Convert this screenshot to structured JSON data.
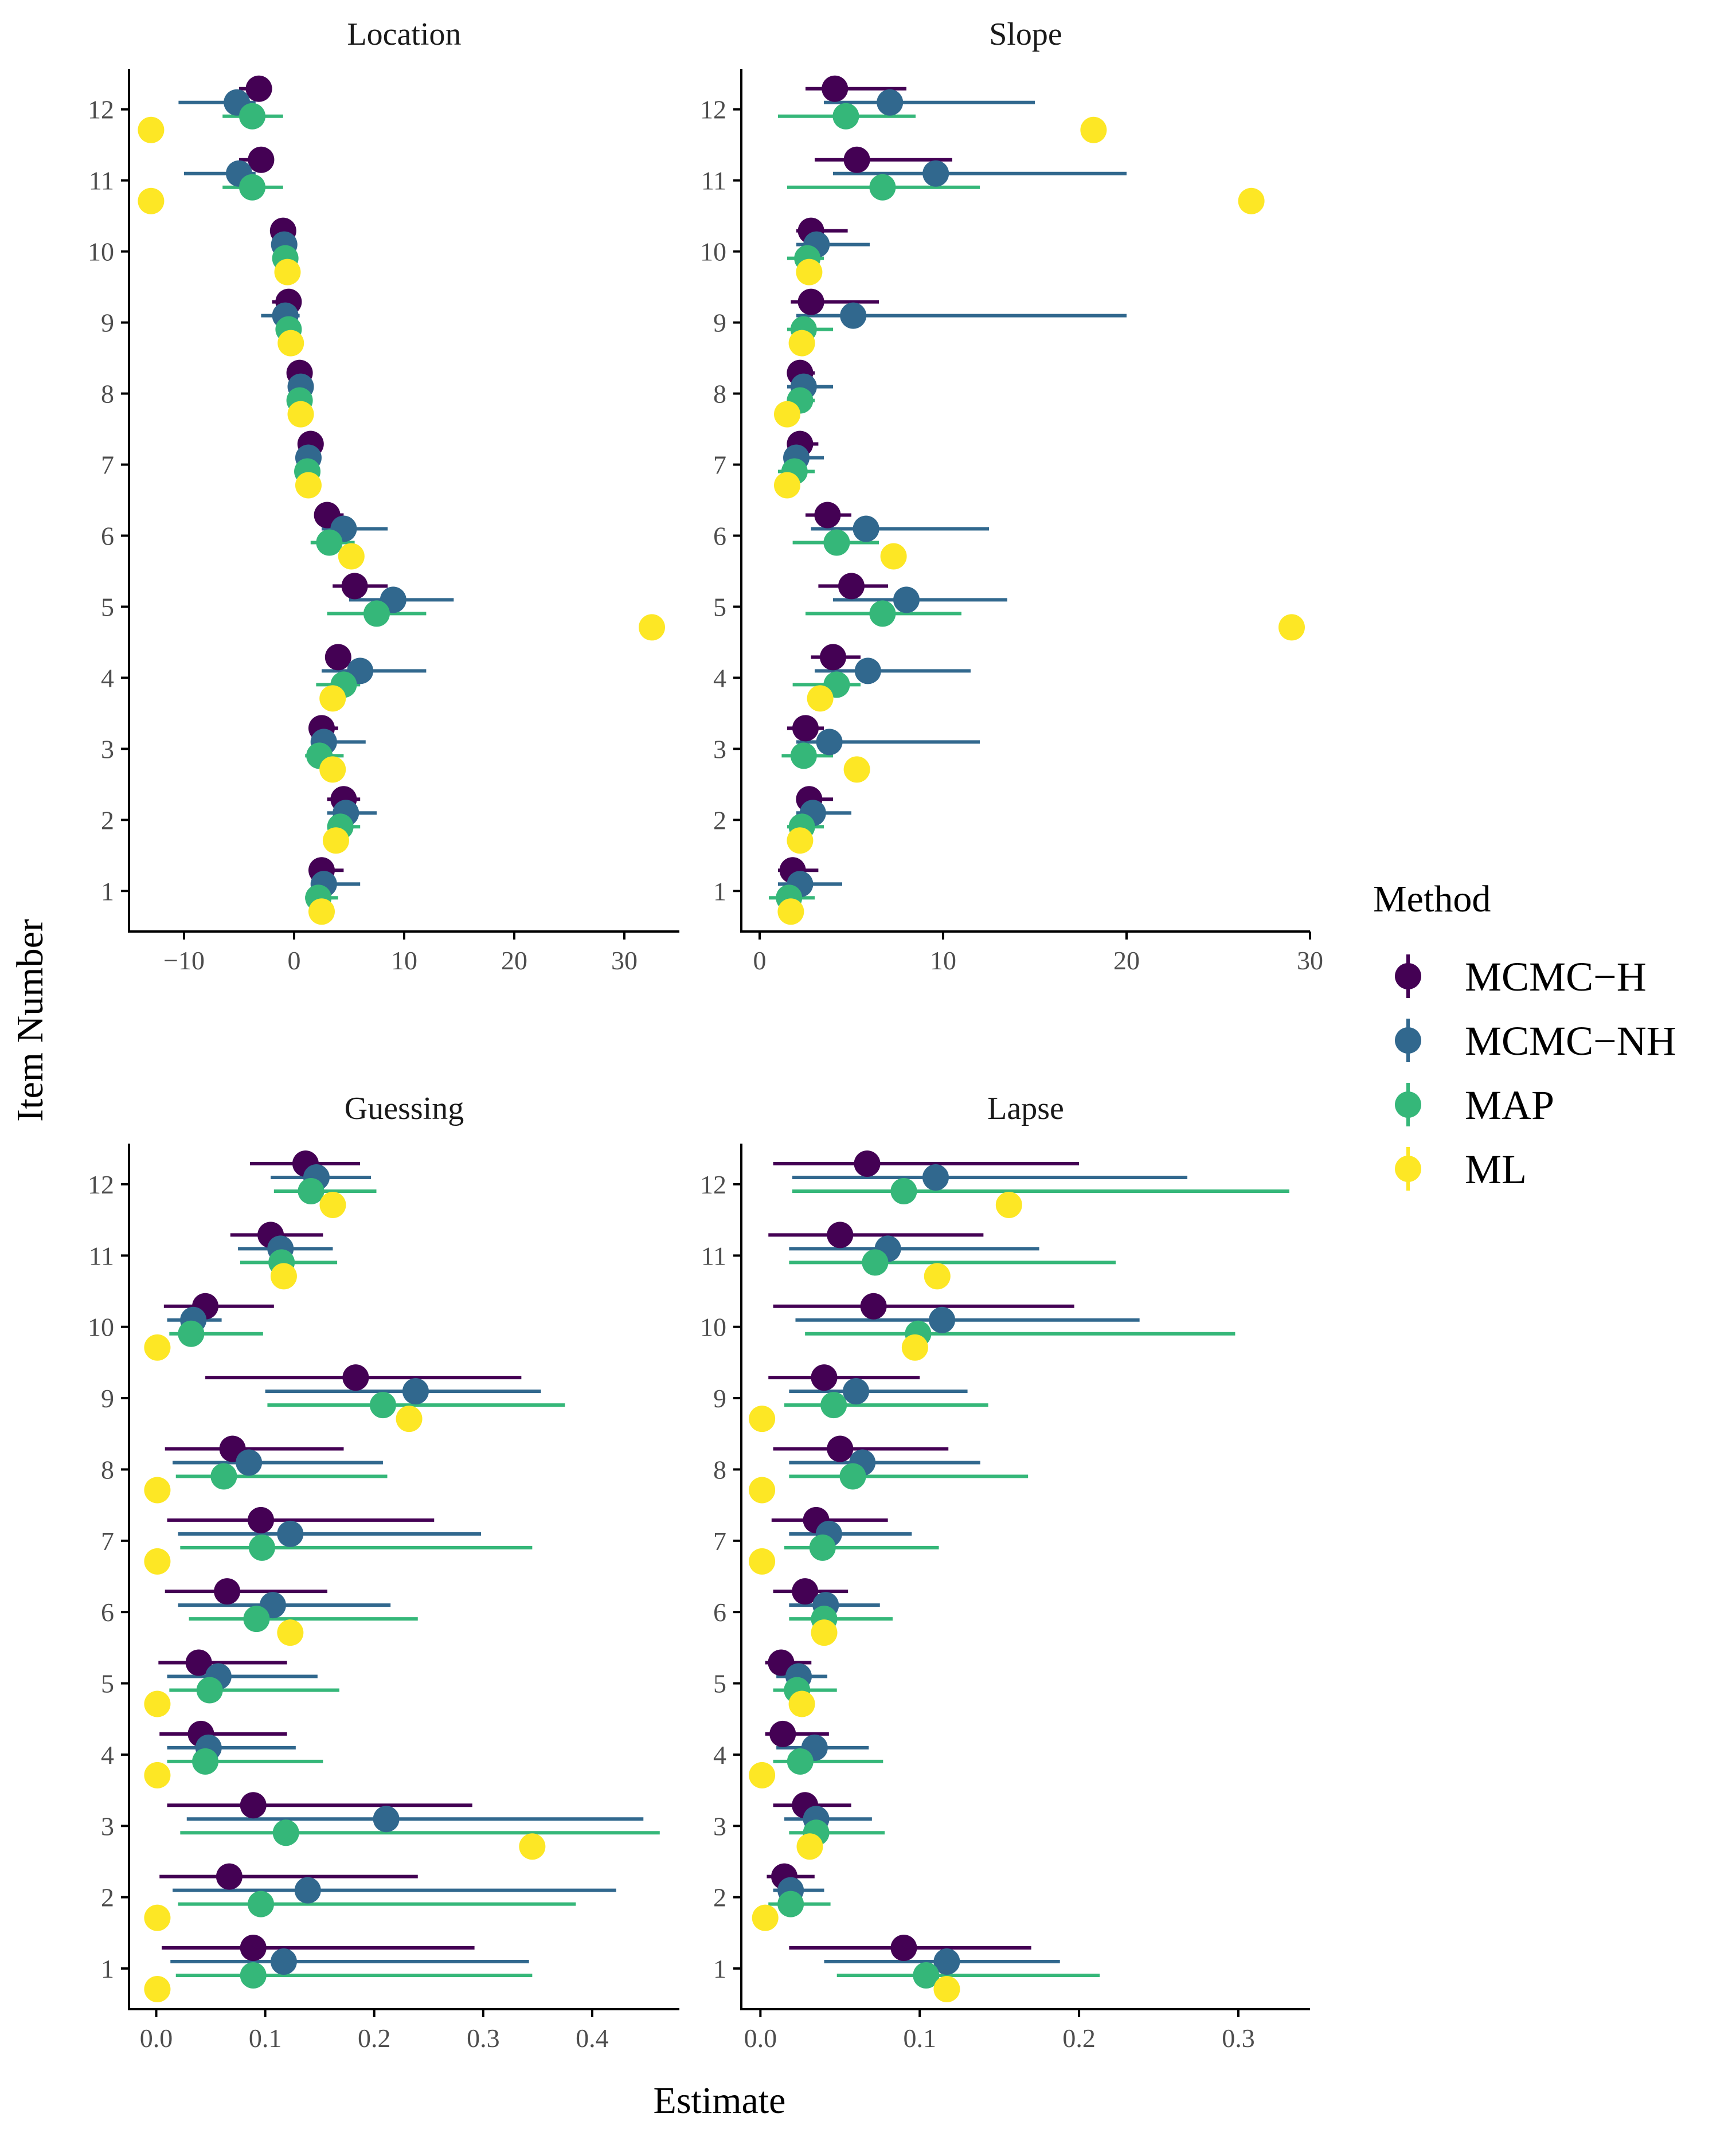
{
  "chart_data": {
    "type": "dot-errorbar",
    "xlabel": "Estimate",
    "ylabel": "Item Number",
    "legend": {
      "title": "Method",
      "position": "right",
      "entries": [
        "MCMC−H",
        "MCMC−NH",
        "MAP",
        "ML"
      ]
    },
    "colors": {
      "MCMC−H": "#440154",
      "MCMC−NH": "#31688e",
      "MAP": "#35b779",
      "ML": "#fde725"
    },
    "items": [
      "1",
      "2",
      "3",
      "4",
      "5",
      "6",
      "7",
      "8",
      "9",
      "10",
      "11",
      "12"
    ],
    "panels": [
      {
        "title": "Location",
        "xlim": [
          -15,
          35
        ],
        "xticks": [
          -10,
          0,
          10,
          20,
          30
        ],
        "xtick_labels": [
          "−10",
          "0",
          "10",
          "20",
          "30"
        ],
        "series": [
          {
            "name": "MCMC−H",
            "values": [
              2.5,
              4.5,
              2.5,
              4.0,
              5.5,
              3.0,
              1.5,
              0.5,
              -0.5,
              -1.0,
              -3.0,
              -3.2
            ],
            "lower": [
              1.5,
              3.0,
              1.5,
              3.0,
              3.5,
              2.0,
              0.5,
              0.0,
              -2.0,
              -1.5,
              -5.0,
              -5.0
            ],
            "upper": [
              4.5,
              6.0,
              4.0,
              5.0,
              8.5,
              4.5,
              2.0,
              1.0,
              0.5,
              -0.5,
              -2.0,
              -2.0
            ]
          },
          {
            "name": "MCMC−NH",
            "values": [
              2.7,
              4.7,
              2.7,
              6.0,
              9.0,
              4.5,
              1.3,
              0.6,
              -0.8,
              -0.9,
              -5.0,
              -5.2
            ],
            "lower": [
              1.5,
              3.0,
              1.5,
              2.5,
              5.0,
              2.5,
              0.5,
              -0.2,
              -3.0,
              -1.5,
              -10.0,
              -10.5
            ],
            "upper": [
              6.0,
              7.5,
              6.5,
              12.0,
              14.5,
              8.5,
              2.0,
              1.5,
              0.5,
              -0.2,
              -3.5,
              -3.5
            ]
          },
          {
            "name": "MAP",
            "values": [
              2.2,
              4.2,
              2.3,
              4.5,
              7.5,
              3.2,
              1.2,
              0.5,
              -0.5,
              -0.8,
              -3.8,
              -3.8
            ],
            "lower": [
              1.0,
              3.0,
              1.0,
              2.0,
              3.0,
              1.5,
              0.5,
              0.0,
              -1.5,
              -1.5,
              -6.5,
              -6.5
            ],
            "upper": [
              4.0,
              6.0,
              4.5,
              6.0,
              12.0,
              5.5,
              2.0,
              1.0,
              0.5,
              -0.2,
              -1.0,
              -1.0
            ]
          },
          {
            "name": "ML",
            "values": [
              2.5,
              3.8,
              3.5,
              3.5,
              32.5,
              5.2,
              1.3,
              0.6,
              -0.3,
              -0.6,
              -13.0,
              -13.0
            ]
          }
        ]
      },
      {
        "title": "Slope",
        "xlim": [
          -1,
          30
        ],
        "xticks": [
          0,
          10,
          20,
          30
        ],
        "xtick_labels": [
          "0",
          "10",
          "20",
          "30"
        ],
        "series": [
          {
            "name": "MCMC−H",
            "values": [
              1.8,
              2.7,
              2.5,
              4.0,
              5.0,
              3.7,
              2.2,
              2.2,
              2.8,
              2.8,
              5.3,
              4.1
            ],
            "lower": [
              1.0,
              2.0,
              1.5,
              2.8,
              3.2,
              2.5,
              1.5,
              1.5,
              1.7,
              2.0,
              3.0,
              2.5
            ],
            "upper": [
              3.2,
              4.0,
              3.5,
              5.5,
              7.0,
              5.0,
              3.2,
              3.0,
              6.5,
              4.8,
              10.5,
              8.0
            ]
          },
          {
            "name": "MCMC−NH",
            "values": [
              2.2,
              2.9,
              3.8,
              5.9,
              8.0,
              5.8,
              2.0,
              2.4,
              5.1,
              3.1,
              9.6,
              7.1
            ],
            "lower": [
              1.0,
              2.0,
              2.0,
              3.0,
              4.0,
              2.8,
              1.5,
              1.5,
              2.0,
              2.0,
              4.0,
              3.5
            ],
            "upper": [
              4.5,
              5.0,
              12.0,
              11.5,
              13.5,
              12.5,
              3.5,
              4.0,
              20.0,
              6.0,
              20.0,
              15.0
            ]
          },
          {
            "name": "MAP",
            "values": [
              1.6,
              2.3,
              2.4,
              4.2,
              6.7,
              4.2,
              1.9,
              2.2,
              2.4,
              2.6,
              6.7,
              4.7
            ],
            "lower": [
              0.5,
              1.5,
              1.2,
              1.8,
              2.5,
              1.8,
              1.0,
              1.5,
              1.5,
              1.5,
              1.5,
              1.0
            ],
            "upper": [
              3.0,
              3.5,
              4.0,
              5.5,
              11.0,
              6.5,
              3.0,
              3.0,
              4.0,
              3.5,
              12.0,
              8.5
            ]
          },
          {
            "name": "ML",
            "values": [
              1.7,
              2.2,
              5.3,
              3.3,
              29.0,
              7.3,
              1.5,
              1.5,
              2.3,
              2.7,
              26.8,
              18.2
            ]
          }
        ]
      },
      {
        "title": "Guessing",
        "xlim": [
          -0.025,
          0.48
        ],
        "xticks": [
          0.0,
          0.1,
          0.2,
          0.3,
          0.4
        ],
        "xtick_labels": [
          "0.0",
          "0.1",
          "0.2",
          "0.3",
          "0.4"
        ],
        "series": [
          {
            "name": "MCMC−H",
            "values": [
              0.089,
              0.067,
              0.089,
              0.041,
              0.039,
              0.065,
              0.096,
              0.07,
              0.183,
              0.045,
              0.105,
              0.137
            ],
            "lower": [
              0.005,
              0.003,
              0.01,
              0.003,
              0.002,
              0.008,
              0.01,
              0.008,
              0.045,
              0.007,
              0.068,
              0.086
            ],
            "upper": [
              0.292,
              0.24,
              0.29,
              0.12,
              0.12,
              0.157,
              0.255,
              0.172,
              0.335,
              0.108,
              0.153,
              0.187
            ]
          },
          {
            "name": "MCMC−NH",
            "values": [
              0.117,
              0.139,
              0.211,
              0.048,
              0.057,
              0.107,
              0.123,
              0.085,
              0.238,
              0.034,
              0.114,
              0.147
            ],
            "lower": [
              0.013,
              0.015,
              0.028,
              0.01,
              0.01,
              0.02,
              0.02,
              0.015,
              0.1,
              0.01,
              0.075,
              0.105
            ],
            "upper": [
              0.342,
              0.422,
              0.447,
              0.128,
              0.148,
              0.215,
              0.298,
              0.208,
              0.353,
              0.06,
              0.162,
              0.197
            ]
          },
          {
            "name": "MAP",
            "values": [
              0.089,
              0.096,
              0.119,
              0.045,
              0.049,
              0.092,
              0.097,
              0.062,
              0.208,
              0.032,
              0.115,
              0.142
            ],
            "lower": [
              0.018,
              0.02,
              0.022,
              0.01,
              0.012,
              0.03,
              0.022,
              0.018,
              0.102,
              0.012,
              0.077,
              0.108
            ],
            "upper": [
              0.345,
              0.385,
              0.462,
              0.153,
              0.168,
              0.24,
              0.345,
              0.212,
              0.375,
              0.098,
              0.166,
              0.202
            ]
          },
          {
            "name": "ML",
            "values": [
              0.001,
              0.001,
              0.345,
              0.001,
              0.001,
              0.123,
              0.001,
              0.001,
              0.232,
              0.001,
              0.117,
              0.162
            ]
          }
        ]
      },
      {
        "title": "Lapse",
        "xlim": [
          -0.012,
          0.345
        ],
        "xticks": [
          0.0,
          0.1,
          0.2,
          0.3
        ],
        "xtick_labels": [
          "0.0",
          "0.1",
          "0.2",
          "0.3"
        ],
        "series": [
          {
            "name": "MCMC−H",
            "values": [
              0.09,
              0.015,
              0.028,
              0.014,
              0.013,
              0.028,
              0.035,
              0.05,
              0.04,
              0.071,
              0.05,
              0.067
            ],
            "lower": [
              0.018,
              0.004,
              0.008,
              0.003,
              0.003,
              0.008,
              0.007,
              0.008,
              0.005,
              0.008,
              0.005,
              0.008
            ],
            "upper": [
              0.17,
              0.034,
              0.057,
              0.043,
              0.032,
              0.055,
              0.08,
              0.118,
              0.1,
              0.197,
              0.14,
              0.2
            ]
          },
          {
            "name": "MCMC−NH",
            "values": [
              0.117,
              0.019,
              0.035,
              0.034,
              0.024,
              0.041,
              0.043,
              0.064,
              0.06,
              0.114,
              0.08,
              0.11
            ],
            "lower": [
              0.04,
              0.008,
              0.015,
              0.01,
              0.01,
              0.018,
              0.018,
              0.018,
              0.018,
              0.022,
              0.018,
              0.02
            ],
            "upper": [
              0.188,
              0.04,
              0.07,
              0.068,
              0.042,
              0.075,
              0.095,
              0.138,
              0.13,
              0.238,
              0.175,
              0.268
            ]
          },
          {
            "name": "MAP",
            "values": [
              0.104,
              0.019,
              0.035,
              0.025,
              0.023,
              0.04,
              0.039,
              0.058,
              0.046,
              0.099,
              0.072,
              0.09
            ],
            "lower": [
              0.048,
              0.005,
              0.018,
              0.008,
              0.008,
              0.018,
              0.015,
              0.018,
              0.015,
              0.028,
              0.018,
              0.02
            ],
            "upper": [
              0.213,
              0.044,
              0.078,
              0.077,
              0.048,
              0.083,
              0.112,
              0.168,
              0.143,
              0.298,
              0.223,
              0.332
            ]
          },
          {
            "name": "ML",
            "values": [
              0.117,
              0.003,
              0.031,
              0.001,
              0.026,
              0.04,
              0.001,
              0.001,
              0.001,
              0.097,
              0.111,
              0.156
            ]
          }
        ]
      }
    ]
  }
}
